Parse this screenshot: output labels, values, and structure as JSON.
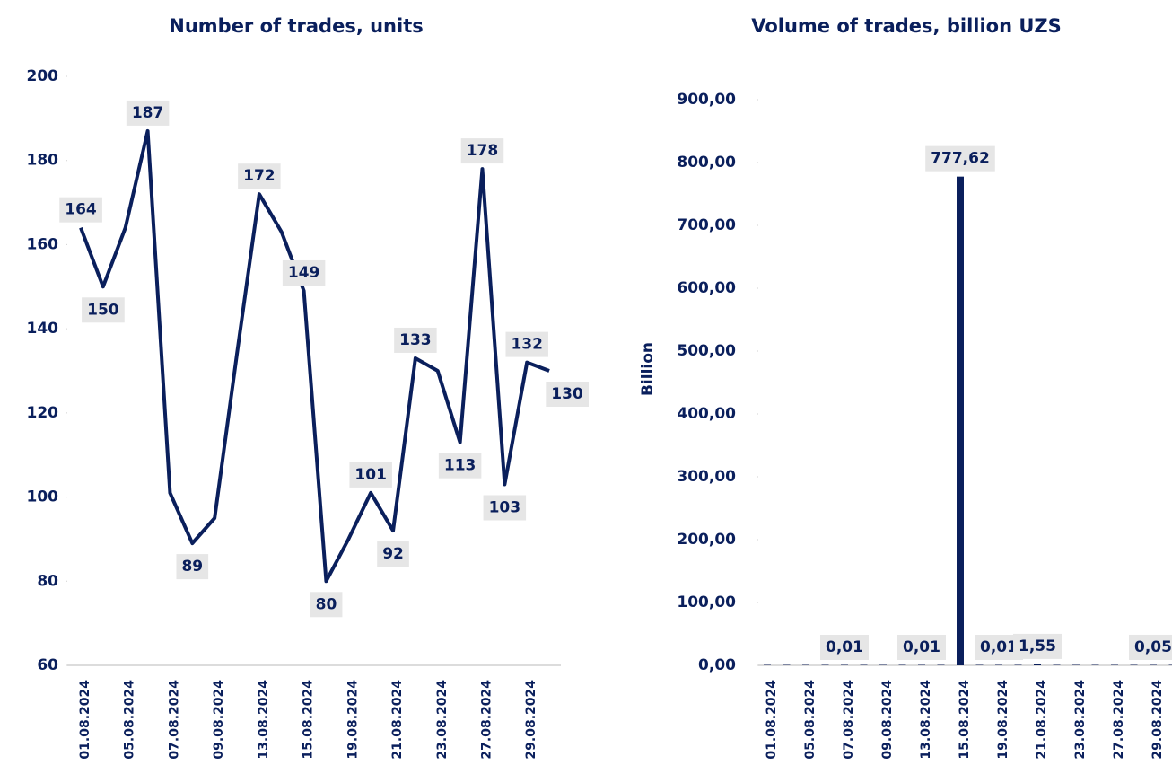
{
  "chart_data": [
    {
      "type": "line",
      "title": "Number of trades, units",
      "color": "#0a1f5c",
      "categories": [
        "01.08.2024",
        null,
        "05.08.2024",
        null,
        "07.08.2024",
        null,
        "09.08.2024",
        null,
        "13.08.2024",
        null,
        "15.08.2024",
        null,
        "19.08.2024",
        null,
        "21.08.2024",
        null,
        "23.08.2024",
        null,
        "27.08.2024",
        null,
        "29.08.2024",
        null
      ],
      "values": [
        164,
        150,
        164,
        187,
        101,
        89,
        95,
        134,
        172,
        163,
        149,
        80,
        90,
        101,
        92,
        133,
        130,
        113,
        178,
        103,
        132,
        130
      ],
      "value_labels": [
        "164",
        "150",
        null,
        "187",
        null,
        "89",
        null,
        null,
        "172",
        null,
        "149",
        "80",
        null,
        "101",
        "92",
        "133",
        null,
        "113",
        "178",
        "103",
        "132",
        "130"
      ],
      "ylim": [
        60,
        200
      ],
      "yticks": [
        60,
        80,
        100,
        120,
        140,
        160,
        180,
        200
      ]
    },
    {
      "type": "bar",
      "title": "Volume of trades, billion UZS",
      "y_label": "Billion",
      "color": "#0a1f5c",
      "categories": [
        "01.08.2024",
        null,
        "05.08.2024",
        null,
        "07.08.2024",
        null,
        "09.08.2024",
        null,
        "13.08.2024",
        null,
        "15.08.2024",
        null,
        "19.08.2024",
        null,
        "21.08.2024",
        null,
        "23.08.2024",
        null,
        "27.08.2024",
        null,
        "29.08.2024",
        null
      ],
      "values": [
        0,
        0,
        0,
        0,
        0.01,
        0,
        0,
        0,
        0.01,
        0,
        777.62,
        0,
        0.01,
        0,
        1.55,
        0,
        0,
        0,
        0,
        0,
        0.05,
        0
      ],
      "value_labels": [
        null,
        null,
        null,
        null,
        "0,01",
        null,
        null,
        null,
        "0,01",
        null,
        "777,62",
        null,
        "0,01",
        null,
        "1,55",
        null,
        null,
        null,
        null,
        null,
        "0,05",
        null
      ],
      "ylim": [
        0,
        900
      ],
      "yticks": [
        {
          "value": 0,
          "label": "0,00"
        },
        {
          "value": 100,
          "label": "100,00"
        },
        {
          "value": 200,
          "label": "200,00"
        },
        {
          "value": 300,
          "label": "300,00"
        },
        {
          "value": 400,
          "label": "400,00"
        },
        {
          "value": 500,
          "label": "500,00"
        },
        {
          "value": 600,
          "label": "600,00"
        },
        {
          "value": 700,
          "label": "700,00"
        },
        {
          "value": 800,
          "label": "800,00"
        },
        {
          "value": 900,
          "label": "900,00"
        }
      ]
    }
  ]
}
